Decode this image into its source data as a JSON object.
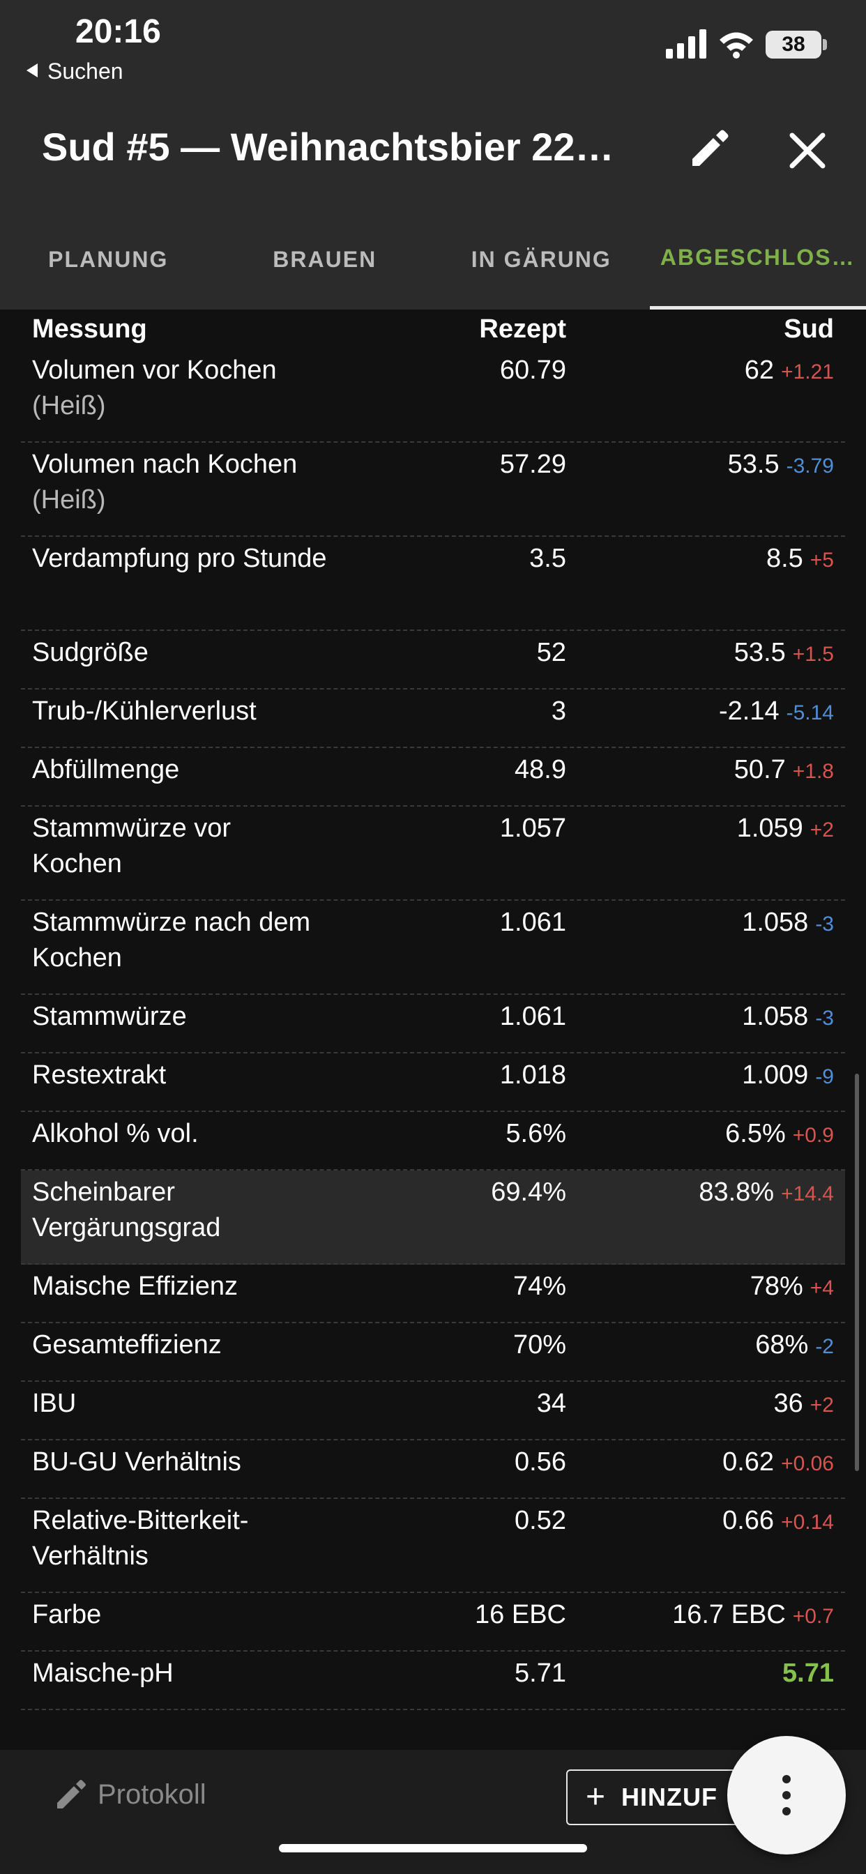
{
  "status_bar": {
    "time": "20:16",
    "back_label": "Suchen",
    "battery": "38"
  },
  "header": {
    "title": "Sud #5 — Weihnachtsbier 22…"
  },
  "tabs": [
    {
      "label": "PLANUNG",
      "active": false
    },
    {
      "label": "BRAUEN",
      "active": false
    },
    {
      "label": "IN GÄRUNG",
      "active": false
    },
    {
      "label": "ABGESCHLOS…",
      "active": true
    }
  ],
  "table": {
    "headers": {
      "measure": "Messung",
      "recipe": "Rezept",
      "batch": "Sud"
    },
    "rows": [
      {
        "label": "Volumen vor Kochen",
        "unit": "(Heiß)",
        "recipe": "60.79",
        "batch": "62",
        "delta": "+1.21",
        "dir": "up"
      },
      {
        "label": "Volumen nach Kochen",
        "unit": "(Heiß)",
        "recipe": "57.29",
        "batch": "53.5",
        "delta": "-3.79",
        "dir": "down"
      },
      {
        "label": "Verdampfung pro Stunde",
        "unit": "",
        "recipe": "3.5",
        "batch": "8.5",
        "delta": "+5",
        "dir": "up"
      },
      {
        "label": "Sudgröße",
        "unit": "",
        "recipe": "52",
        "batch": "53.5",
        "delta": "+1.5",
        "dir": "up"
      },
      {
        "label": "Trub-/Kühlerverlust",
        "unit": "",
        "recipe": "3",
        "batch": "-2.14",
        "delta": "-5.14",
        "dir": "down"
      },
      {
        "label": "Abfüllmenge",
        "unit": "",
        "recipe": "48.9",
        "batch": "50.7",
        "delta": "+1.8",
        "dir": "up"
      },
      {
        "label": "Stammwürze vor Kochen",
        "unit": "",
        "recipe": "1.057",
        "batch": "1.059",
        "delta": "+2",
        "dir": "up"
      },
      {
        "label": "Stammwürze nach dem Kochen",
        "unit": "",
        "recipe": "1.061",
        "batch": "1.058",
        "delta": "-3",
        "dir": "down"
      },
      {
        "label": "Stammwürze",
        "unit": "",
        "recipe": "1.061",
        "batch": "1.058",
        "delta": "-3",
        "dir": "down"
      },
      {
        "label": "Restextrakt",
        "unit": "",
        "recipe": "1.018",
        "batch": "1.009",
        "delta": "-9",
        "dir": "down"
      },
      {
        "label": "Alkohol % vol.",
        "unit": "",
        "recipe": "5.6%",
        "batch": "6.5%",
        "delta": "+0.9",
        "dir": "up"
      },
      {
        "label": "Scheinbarer Vergärungsgrad",
        "unit": "",
        "recipe": "69.4%",
        "batch": "83.8%",
        "delta": "+14.4",
        "dir": "up"
      },
      {
        "label": "Maische Effizienz",
        "unit": "",
        "recipe": "74%",
        "batch": "78%",
        "delta": "+4",
        "dir": "up"
      },
      {
        "label": "Gesamteffizienz",
        "unit": "",
        "recipe": "70%",
        "batch": "68%",
        "delta": "-2",
        "dir": "down"
      },
      {
        "label": "IBU",
        "unit": "",
        "recipe": "34",
        "batch": "36",
        "delta": "+2",
        "dir": "up"
      },
      {
        "label": "BU-GU Verhältnis",
        "unit": "",
        "recipe": "0.56",
        "batch": "0.62",
        "delta": "+0.06",
        "dir": "up"
      },
      {
        "label": "Relative-Bitterkeit-Verhältnis",
        "unit": "",
        "recipe": "0.52",
        "batch": "0.66",
        "delta": "+0.14",
        "dir": "up"
      },
      {
        "label": "Farbe",
        "unit": "",
        "recipe": "16 EBC",
        "batch": "16.7 EBC",
        "delta": "+0.7",
        "dir": "up"
      },
      {
        "label": "Maische-pH",
        "unit": "",
        "recipe": "5.71",
        "batch": "5.71",
        "delta": "",
        "dir": "equal"
      }
    ]
  },
  "bottom_bar": {
    "protokoll_label": "Protokoll",
    "add_label": "HINZUF"
  },
  "colors": {
    "accent_green": "#7fb04a",
    "delta_up": "#d9534f",
    "delta_down": "#4f8fd9",
    "background": "#111111",
    "header_bg": "#2b2b2b"
  }
}
